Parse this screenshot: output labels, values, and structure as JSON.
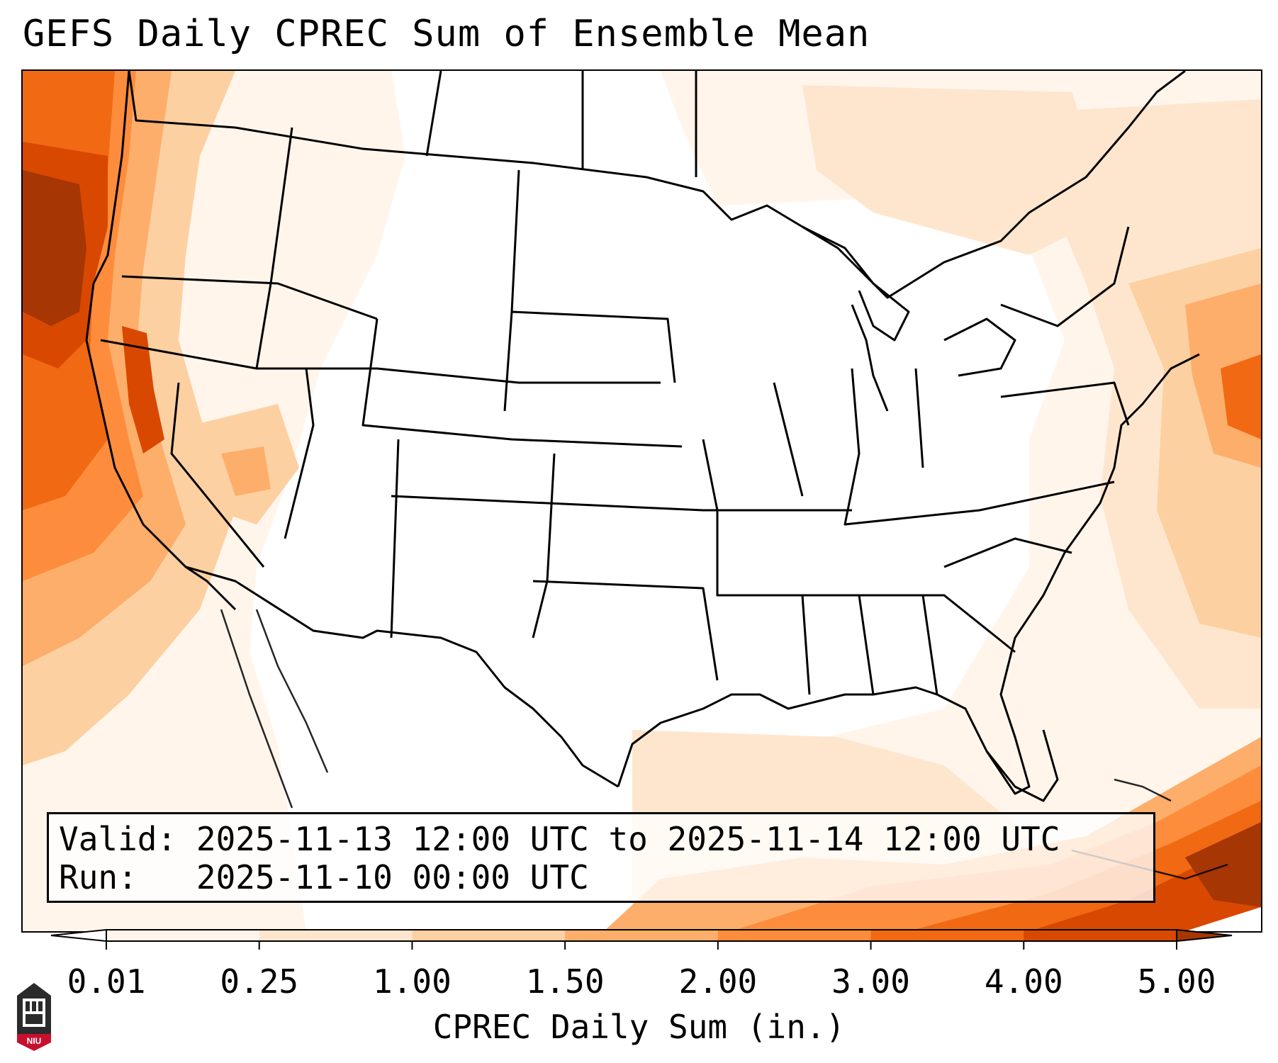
{
  "title": "GEFS Daily CPREC Sum of Ensemble Mean",
  "info": {
    "valid_label": "Valid:",
    "valid_value": "2025-11-13 12:00 UTC to 2025-11-14 12:00 UTC",
    "run_label": "Run:",
    "run_value": "2025-11-10 00:00 UTC"
  },
  "colorbar": {
    "label": "CPREC Daily Sum (in.)",
    "ticks": [
      "0.01",
      "0.25",
      "1.00",
      "1.50",
      "2.00",
      "3.00",
      "4.00",
      "5.00"
    ],
    "colors": [
      "#fff5eb",
      "#fee6ce",
      "#fdd0a2",
      "#fdae6b",
      "#fd8d3c",
      "#f16913",
      "#d94801"
    ],
    "under_color": "#ffffff",
    "over_color": "#a63603",
    "extend": "both"
  },
  "map": {
    "region": "Contiguous United States",
    "field": "CPREC Daily Sum of Ensemble Mean",
    "units": "in."
  },
  "logo": {
    "text": "NIU",
    "icon": "niu-logo-icon"
  }
}
